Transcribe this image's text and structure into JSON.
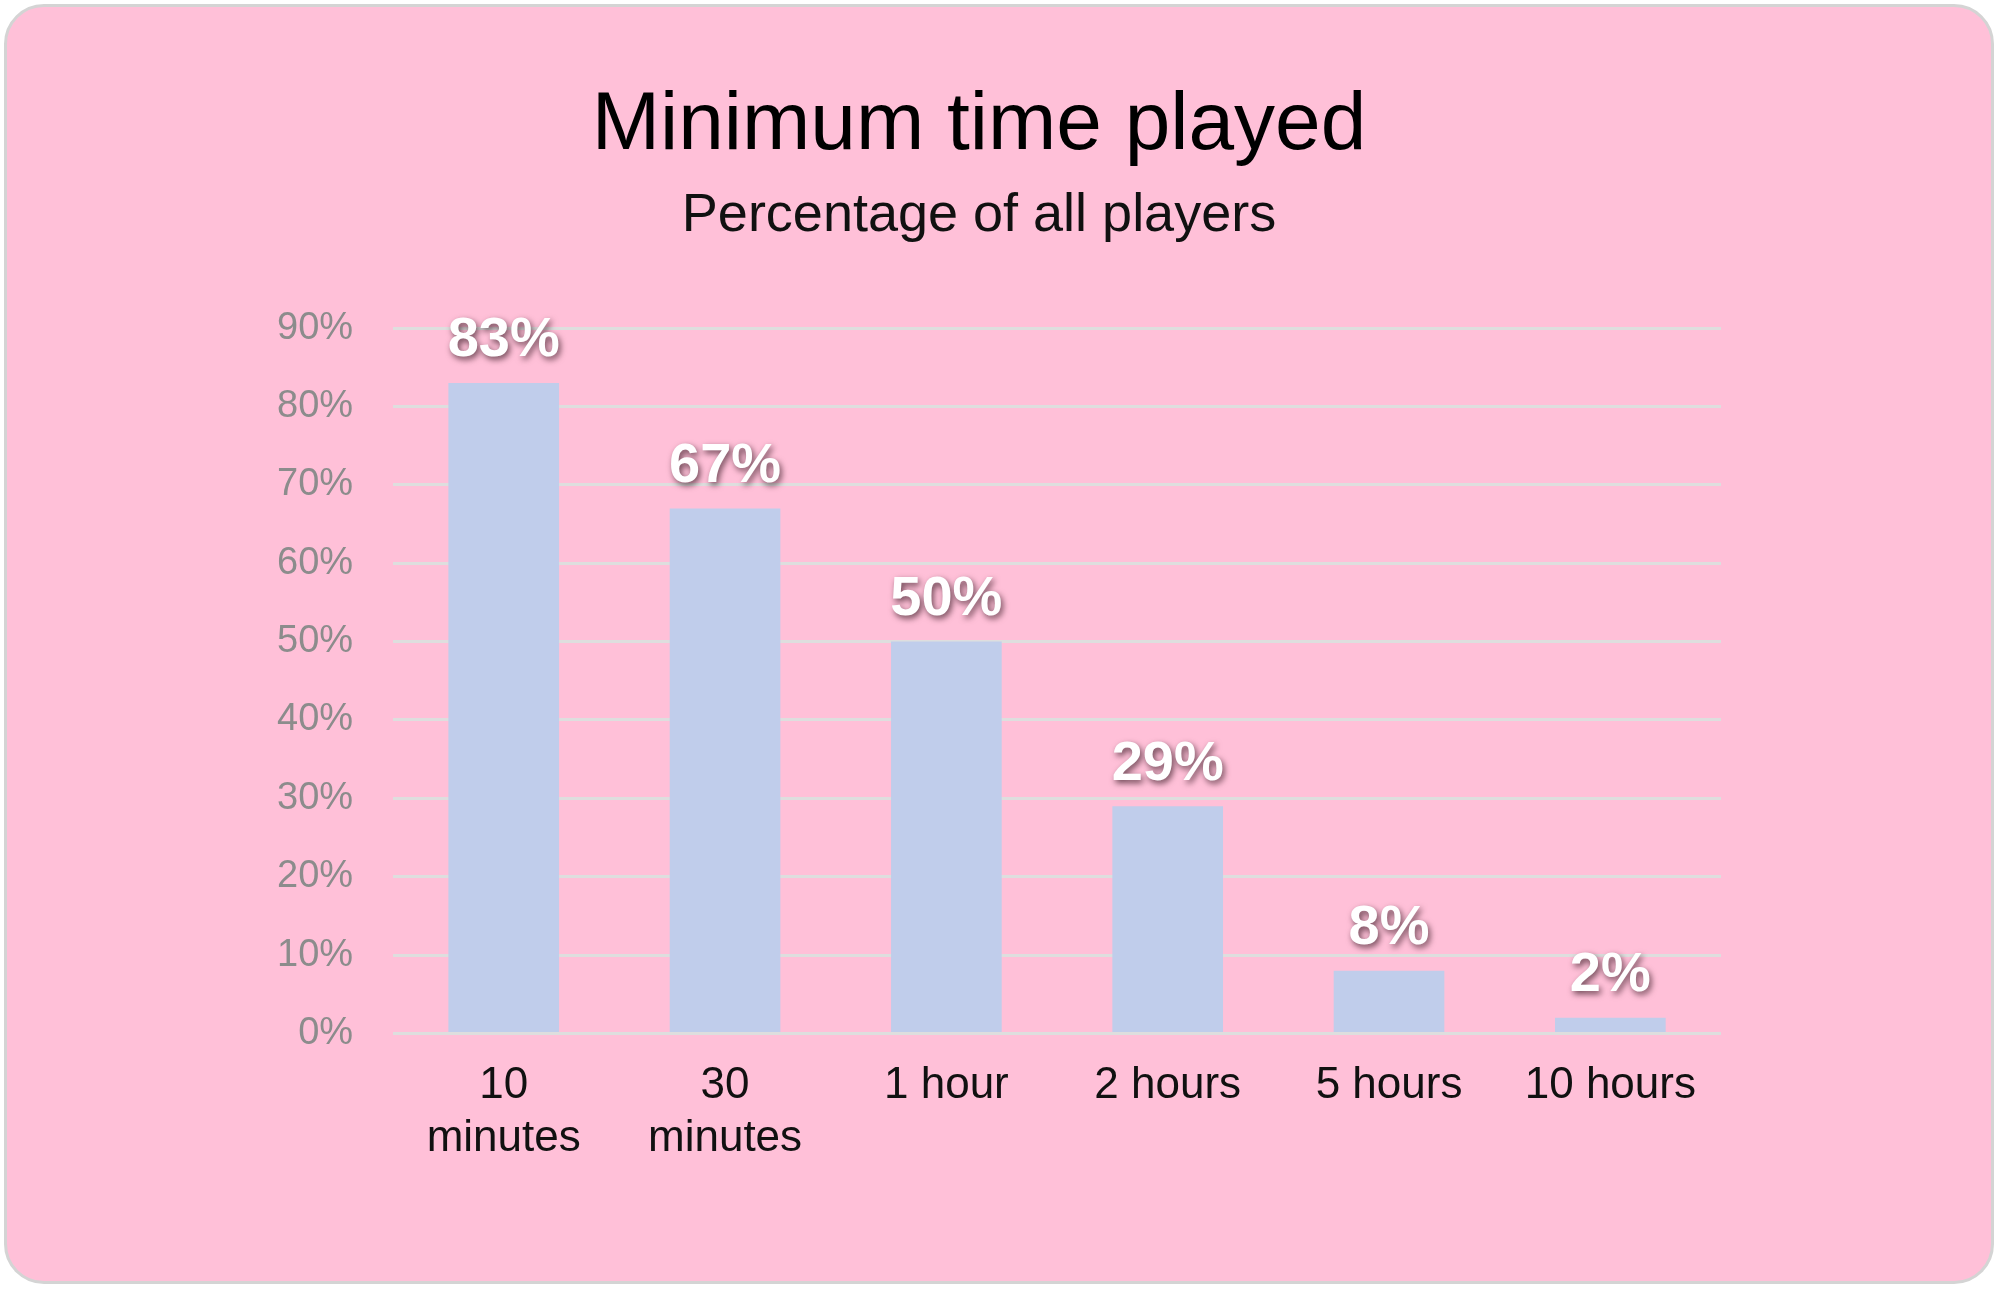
{
  "chart_data": {
    "type": "bar",
    "title": "Minimum time played",
    "subtitle": "Percentage of all players",
    "categories": [
      "10 minutes",
      "30 minutes",
      "1 hour",
      "2 hours",
      "5 hours",
      "10 hours"
    ],
    "values": [
      83,
      67,
      50,
      29,
      8,
      2
    ],
    "color": "#c0cdeb",
    "value_labels": [
      "83%",
      "67%",
      "50%",
      "29%",
      "8%",
      "2%"
    ],
    "ylim": [
      0,
      90
    ],
    "yticks": [
      {
        "value": 0,
        "label": "0%"
      },
      {
        "value": 10,
        "label": "10%"
      },
      {
        "value": 20,
        "label": "20%"
      },
      {
        "value": 30,
        "label": "30%"
      },
      {
        "value": 40,
        "label": "40%"
      },
      {
        "value": 50,
        "label": "50%"
      },
      {
        "value": 60,
        "label": "60%"
      },
      {
        "value": 70,
        "label": "70%"
      },
      {
        "value": 80,
        "label": "80%"
      },
      {
        "value": 90,
        "label": "90%"
      }
    ],
    "grid": "y",
    "legend": false
  }
}
